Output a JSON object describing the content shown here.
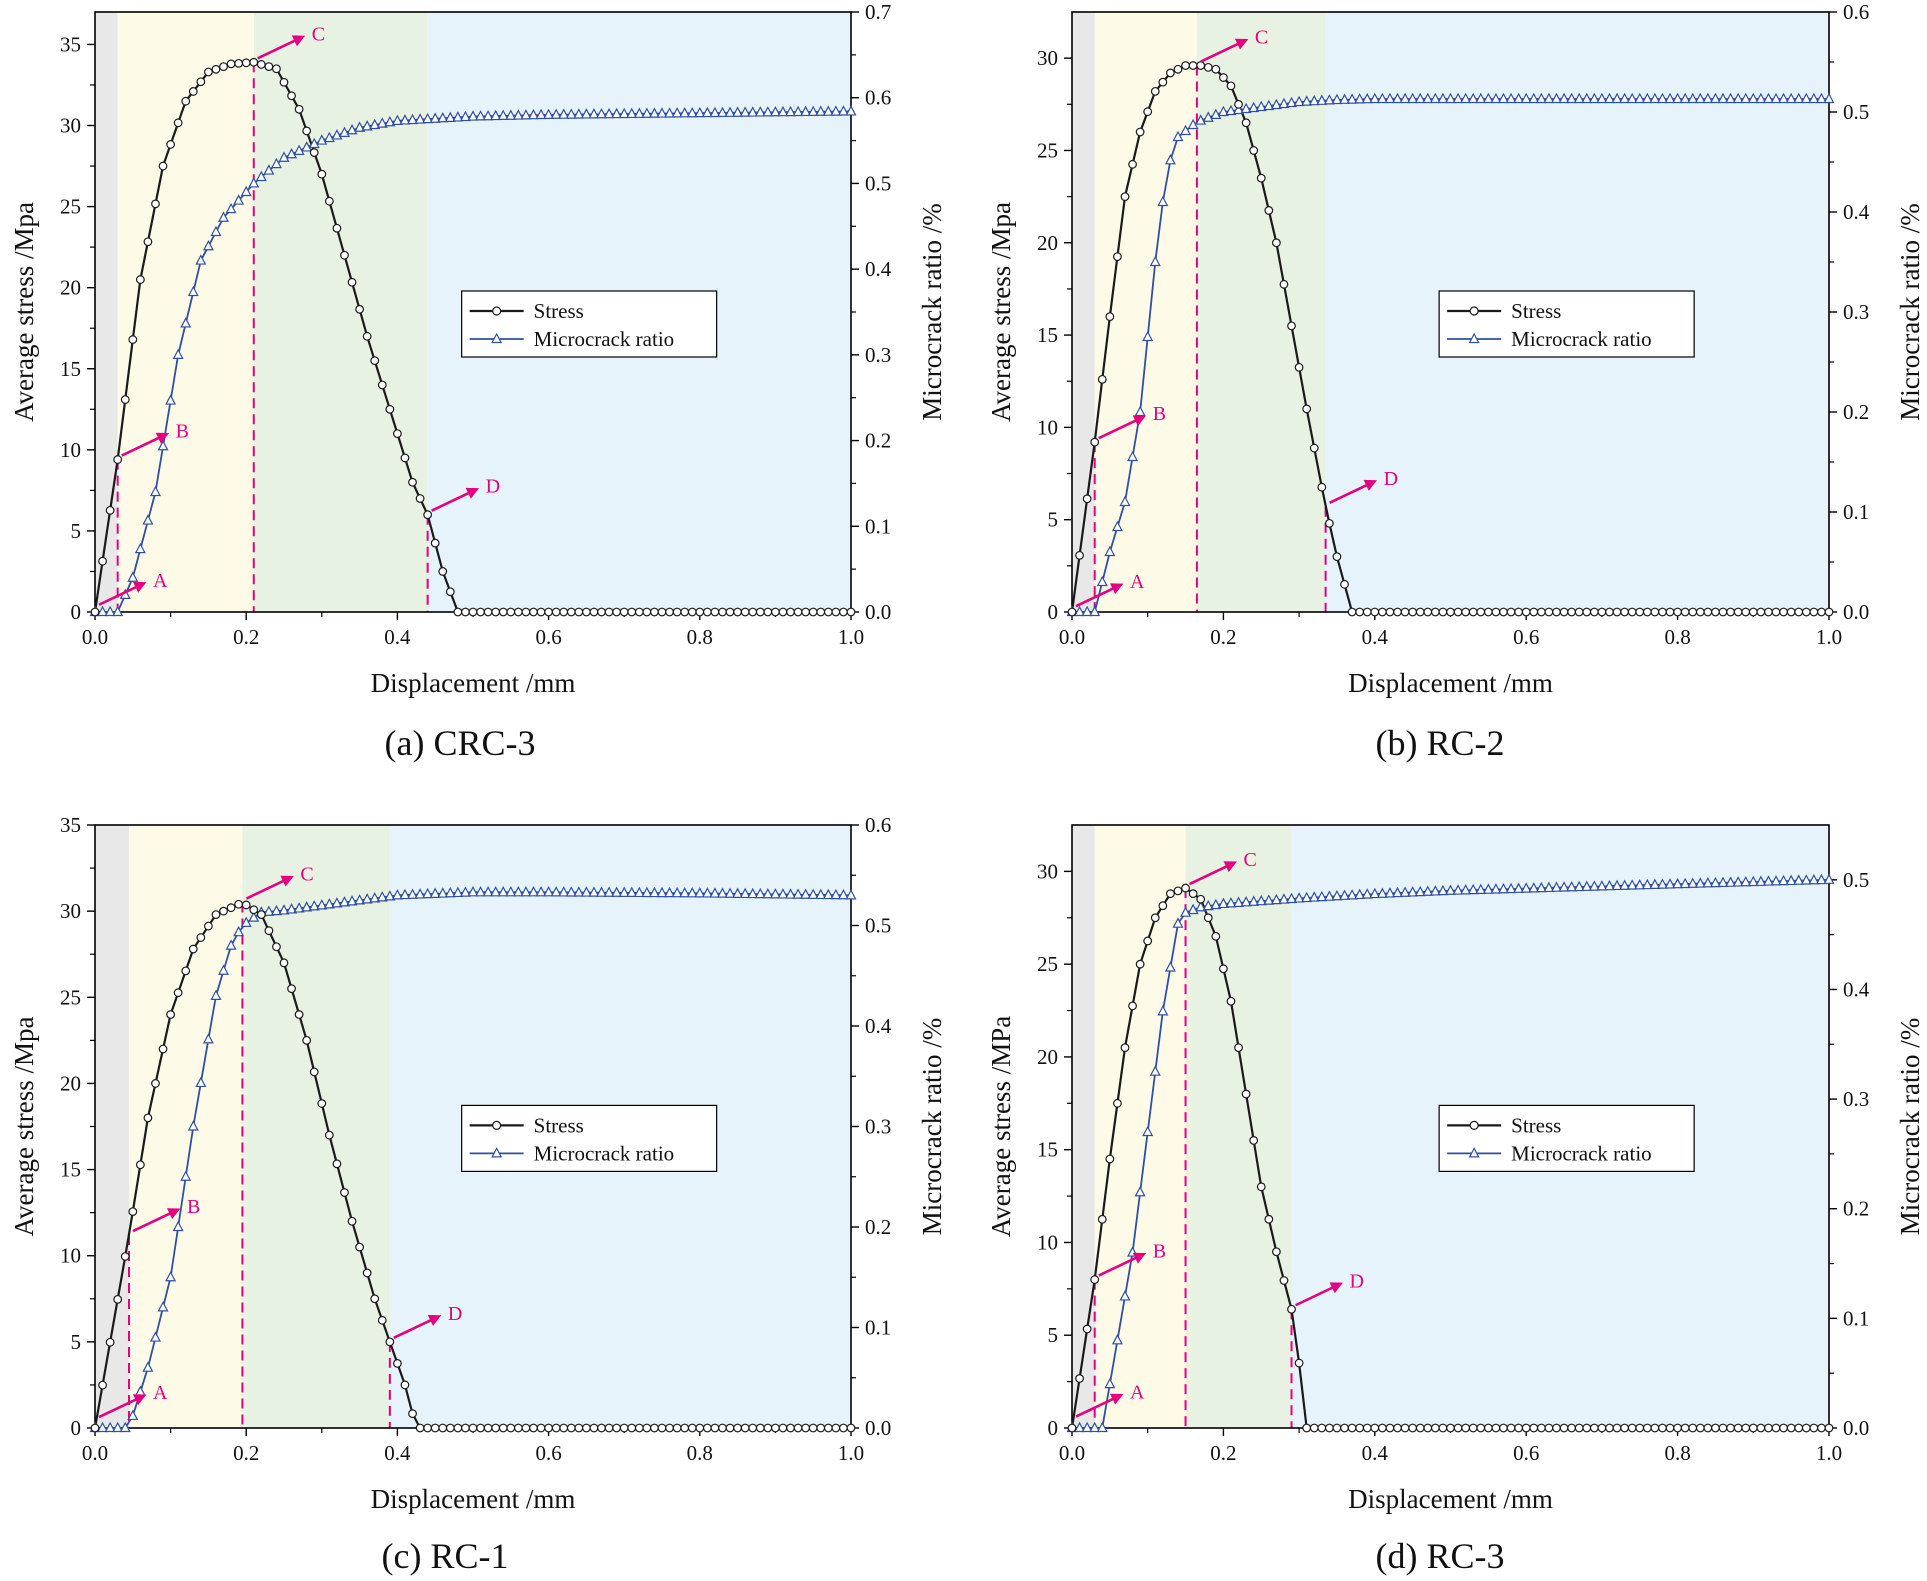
{
  "figure": {
    "colors": {
      "stress": "#1a1a1a",
      "crack": "#2f4fa3",
      "marker": "#e4007f",
      "zone_i": "#e8e8e8",
      "zone_ii": "#fdfbe8",
      "zone_iii": "#e8f2e3",
      "zone_iv": "#e7f3fa"
    }
  },
  "chart_data": [
    {
      "type": "line",
      "caption": "(a) CRC-3",
      "xlabel": "Displacement /mm",
      "ylabel": "Average stress /Mpa",
      "y2label": "Microcrack ratio /%",
      "xlim": [
        0,
        1.0
      ],
      "ylim": [
        0,
        37
      ],
      "y2lim": [
        0,
        0.7
      ],
      "xticks": [
        0.0,
        0.2,
        0.4,
        0.6,
        0.8,
        1.0
      ],
      "xtick_labels": [
        "0.0",
        "0.2",
        "0.4",
        "0.6",
        "0.8",
        "1.0"
      ],
      "yticks": [
        0,
        5,
        10,
        15,
        20,
        25,
        30,
        35
      ],
      "ytick_labels": [
        "0",
        "5",
        "10",
        "15",
        "20",
        "25",
        "30",
        "35"
      ],
      "y2ticks": [
        0.0,
        0.1,
        0.2,
        0.3,
        0.4,
        0.5,
        0.6,
        0.7
      ],
      "y2tick_labels": [
        "0.0",
        "0.1",
        "0.2",
        "0.3",
        "0.4",
        "0.5",
        "0.6",
        "0.7"
      ],
      "zones": [
        0.03,
        0.21,
        0.44
      ],
      "marker_points": {
        "A": [
          0.0,
          0.2
        ],
        "B": [
          0.03,
          9.4
        ],
        "C": [
          0.21,
          33.9
        ],
        "D": [
          0.44,
          6.0
        ]
      },
      "legend": [
        "Stress",
        "Microcrack ratio"
      ],
      "legend_position": "middle-right",
      "series": [
        {
          "name": "Stress",
          "axis": "left",
          "x": [
            0,
            0.03,
            0.06,
            0.09,
            0.12,
            0.15,
            0.18,
            0.21,
            0.24,
            0.27,
            0.3,
            0.33,
            0.36,
            0.39,
            0.42,
            0.44,
            0.46,
            0.48,
            1.0
          ],
          "values": [
            0,
            9.4,
            20.5,
            27.5,
            31.5,
            33.3,
            33.8,
            33.9,
            33.5,
            31.0,
            27.0,
            22.0,
            17.0,
            12.5,
            8.0,
            6.0,
            2.5,
            0,
            0
          ]
        },
        {
          "name": "Microcrack ratio",
          "axis": "right",
          "x": [
            0,
            0.03,
            0.05,
            0.08,
            0.11,
            0.14,
            0.17,
            0.21,
            0.25,
            0.3,
            0.35,
            0.4,
            0.5,
            0.6,
            0.8,
            1.0
          ],
          "values": [
            0,
            0,
            0.04,
            0.14,
            0.3,
            0.41,
            0.46,
            0.5,
            0.53,
            0.55,
            0.565,
            0.573,
            0.578,
            0.58,
            0.582,
            0.584
          ]
        }
      ]
    },
    {
      "type": "line",
      "caption": "(b) RC-2",
      "xlabel": "Displacement /mm",
      "ylabel": "Average stress /Mpa",
      "y2label": "Microcrack ratio /%",
      "xlim": [
        0,
        1.0
      ],
      "ylim": [
        0,
        32.5
      ],
      "y2lim": [
        0,
        0.6
      ],
      "xticks": [
        0.0,
        0.2,
        0.4,
        0.6,
        0.8,
        1.0
      ],
      "xtick_labels": [
        "0.0",
        "0.2",
        "0.4",
        "0.6",
        "0.8",
        "1.0"
      ],
      "yticks": [
        0,
        5,
        10,
        15,
        20,
        25,
        30
      ],
      "ytick_labels": [
        "0",
        "5",
        "10",
        "15",
        "20",
        "25",
        "30"
      ],
      "y2ticks": [
        0.0,
        0.1,
        0.2,
        0.3,
        0.4,
        0.5,
        0.6
      ],
      "y2tick_labels": [
        "0.0",
        "0.1",
        "0.2",
        "0.3",
        "0.4",
        "0.5",
        "0.6"
      ],
      "zones": [
        0.03,
        0.165,
        0.335
      ],
      "marker_points": {
        "A": [
          0.0,
          0.1
        ],
        "B": [
          0.03,
          9.2
        ],
        "C": [
          0.165,
          29.6
        ],
        "D": [
          0.335,
          5.7
        ]
      },
      "legend": [
        "Stress",
        "Microcrack ratio"
      ],
      "legend_position": "middle-right",
      "series": [
        {
          "name": "Stress",
          "axis": "left",
          "x": [
            0,
            0.03,
            0.05,
            0.07,
            0.09,
            0.11,
            0.13,
            0.15,
            0.17,
            0.19,
            0.21,
            0.23,
            0.25,
            0.27,
            0.29,
            0.31,
            0.335,
            0.35,
            0.37,
            1.0
          ],
          "values": [
            0,
            9.2,
            16,
            22.5,
            26,
            28.2,
            29.2,
            29.6,
            29.6,
            29.4,
            28.5,
            26.5,
            23.5,
            20,
            15.5,
            11,
            5.7,
            3.0,
            0,
            0
          ]
        },
        {
          "name": "Microcrack ratio",
          "axis": "right",
          "x": [
            0,
            0.03,
            0.05,
            0.07,
            0.09,
            0.11,
            0.125,
            0.14,
            0.165,
            0.2,
            0.25,
            0.3,
            0.35,
            0.4,
            0.6,
            0.8,
            1.0
          ],
          "values": [
            0,
            0,
            0.06,
            0.11,
            0.2,
            0.35,
            0.44,
            0.475,
            0.49,
            0.5,
            0.505,
            0.51,
            0.512,
            0.513,
            0.513,
            0.513,
            0.513
          ]
        }
      ]
    },
    {
      "type": "line",
      "caption": "(c) RC-1",
      "xlabel": "Displacement /mm",
      "ylabel": "Average stress /Mpa",
      "y2label": "Microcrack ratio /%",
      "xlim": [
        0,
        1.0
      ],
      "ylim": [
        0,
        35
      ],
      "y2lim": [
        0,
        0.6
      ],
      "xticks": [
        0.0,
        0.2,
        0.4,
        0.6,
        0.8,
        1.0
      ],
      "xtick_labels": [
        "0.0",
        "0.2",
        "0.4",
        "0.6",
        "0.8",
        "1.0"
      ],
      "yticks": [
        0,
        5,
        10,
        15,
        20,
        25,
        30,
        35
      ],
      "ytick_labels": [
        "0",
        "5",
        "10",
        "15",
        "20",
        "25",
        "30",
        "35"
      ],
      "y2ticks": [
        0.0,
        0.1,
        0.2,
        0.3,
        0.4,
        0.5,
        0.6
      ],
      "y2tick_labels": [
        "0.0",
        "0.1",
        "0.2",
        "0.3",
        "0.4",
        "0.5",
        "0.6"
      ],
      "zones": [
        0.045,
        0.195,
        0.39
      ],
      "marker_points": {
        "A": [
          0.0,
          0.4
        ],
        "B": [
          0.045,
          11.2
        ],
        "C": [
          0.195,
          30.5
        ],
        "D": [
          0.39,
          5.0
        ]
      },
      "legend": [
        "Stress",
        "Microcrack ratio"
      ],
      "legend_position": "middle-right",
      "series": [
        {
          "name": "Stress",
          "axis": "left",
          "x": [
            0,
            0.045,
            0.07,
            0.1,
            0.13,
            0.16,
            0.195,
            0.22,
            0.25,
            0.28,
            0.31,
            0.34,
            0.37,
            0.39,
            0.41,
            0.425,
            1.0
          ],
          "values": [
            0,
            11.2,
            18,
            24,
            27.8,
            29.8,
            30.5,
            29.8,
            27,
            22.5,
            17,
            12,
            7.5,
            5.0,
            2.5,
            0,
            0
          ]
        },
        {
          "name": "Microcrack ratio",
          "axis": "right",
          "x": [
            0,
            0.045,
            0.07,
            0.1,
            0.13,
            0.16,
            0.18,
            0.195,
            0.22,
            0.25,
            0.3,
            0.4,
            0.5,
            0.6,
            0.8,
            1.0
          ],
          "values": [
            0,
            0,
            0.06,
            0.15,
            0.3,
            0.43,
            0.48,
            0.5,
            0.513,
            0.515,
            0.52,
            0.53,
            0.533,
            0.533,
            0.532,
            0.53
          ]
        }
      ]
    },
    {
      "type": "line",
      "caption": "(d) RC-3",
      "xlabel": "Displacement /mm",
      "ylabel": "Average stress /MPa",
      "y2label": "Microcrack ratio /%",
      "xlim": [
        0,
        1.0
      ],
      "ylim": [
        0,
        32.5
      ],
      "y2lim": [
        0,
        0.55
      ],
      "xticks": [
        0.0,
        0.2,
        0.4,
        0.6,
        0.8,
        1.0
      ],
      "xtick_labels": [
        "0.0",
        "0.2",
        "0.4",
        "0.6",
        "0.8",
        "1.0"
      ],
      "yticks": [
        0,
        5,
        10,
        15,
        20,
        25,
        30
      ],
      "ytick_labels": [
        "0",
        "5",
        "10",
        "15",
        "20",
        "25",
        "30"
      ],
      "y2ticks": [
        0.0,
        0.1,
        0.2,
        0.3,
        0.4,
        0.5
      ],
      "y2tick_labels": [
        "0.0",
        "0.1",
        "0.2",
        "0.3",
        "0.4",
        "0.5"
      ],
      "zones": [
        0.03,
        0.15,
        0.29
      ],
      "marker_points": {
        "A": [
          0.0,
          0.4
        ],
        "B": [
          0.03,
          8.0
        ],
        "C": [
          0.15,
          29.1
        ],
        "D": [
          0.29,
          6.4
        ]
      },
      "legend": [
        "Stress",
        "Microcrack ratio"
      ],
      "legend_position": "middle-right",
      "series": [
        {
          "name": "Stress",
          "axis": "left",
          "x": [
            0,
            0.03,
            0.05,
            0.07,
            0.09,
            0.11,
            0.13,
            0.15,
            0.17,
            0.19,
            0.21,
            0.23,
            0.25,
            0.27,
            0.29,
            0.3,
            0.31,
            1.0
          ],
          "values": [
            0,
            8.0,
            14.5,
            20.5,
            25.0,
            27.5,
            28.8,
            29.1,
            28.5,
            26.5,
            23.0,
            18.0,
            13.0,
            9.5,
            6.4,
            3.5,
            0,
            0
          ]
        },
        {
          "name": "Microcrack ratio",
          "axis": "right",
          "x": [
            0,
            0.04,
            0.06,
            0.08,
            0.1,
            0.12,
            0.14,
            0.15,
            0.17,
            0.2,
            0.3,
            0.4,
            0.5,
            0.6,
            0.8,
            1.0
          ],
          "values": [
            0,
            0,
            0.08,
            0.16,
            0.27,
            0.38,
            0.46,
            0.47,
            0.475,
            0.478,
            0.483,
            0.487,
            0.49,
            0.492,
            0.496,
            0.5
          ]
        }
      ]
    }
  ]
}
